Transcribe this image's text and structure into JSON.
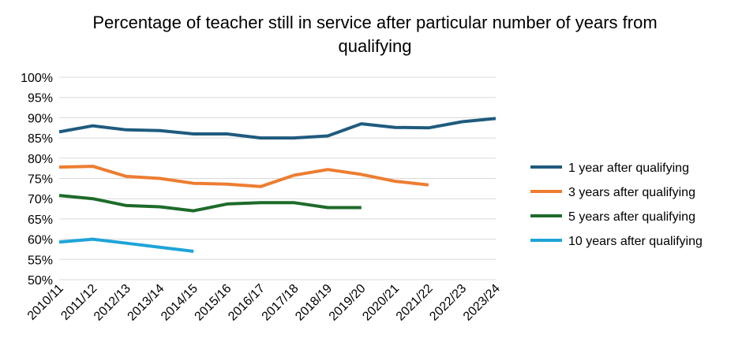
{
  "chart_data": {
    "type": "line",
    "title": "Percentage of teacher still in service after particular number of years from qualifying",
    "xlabel": "",
    "ylabel": "",
    "categories": [
      "2010/11",
      "2011/12",
      "2012/13",
      "2013/14",
      "2014/15",
      "2015/16",
      "2016/17",
      "2017/18",
      "2018/19",
      "2019/20",
      "2020/21",
      "2021/22",
      "2022/23",
      "2023/24"
    ],
    "ylim": [
      50,
      100
    ],
    "yticks": [
      "50%",
      "55%",
      "60%",
      "65%",
      "70%",
      "75%",
      "80%",
      "85%",
      "90%",
      "95%",
      "100%"
    ],
    "grid": true,
    "legend_position": "right",
    "series": [
      {
        "name": "1 year after qualifying",
        "color": "#1f5b7e",
        "values": [
          86.5,
          88.0,
          87.0,
          86.8,
          86.0,
          86.0,
          85.0,
          85.0,
          85.5,
          88.5,
          87.6,
          87.5,
          89.0,
          89.8
        ]
      },
      {
        "name": "3 years after qualifying",
        "color": "#ed7d31",
        "values": [
          77.8,
          78.0,
          75.5,
          75.0,
          73.8,
          73.6,
          73.0,
          75.8,
          77.2,
          76.0,
          74.3,
          73.4,
          null,
          null
        ]
      },
      {
        "name": "5 years after qualifying",
        "color": "#1e6b2a",
        "values": [
          70.8,
          70.0,
          68.3,
          68.0,
          67.0,
          68.7,
          69.0,
          69.0,
          67.8,
          67.8,
          null,
          null,
          null,
          null
        ]
      },
      {
        "name": "10 years after qualifying",
        "color": "#1ea4d8",
        "values": [
          59.3,
          60.0,
          59.0,
          58.0,
          57.0,
          null,
          null,
          null,
          null,
          null,
          null,
          null,
          null,
          null
        ]
      }
    ]
  }
}
